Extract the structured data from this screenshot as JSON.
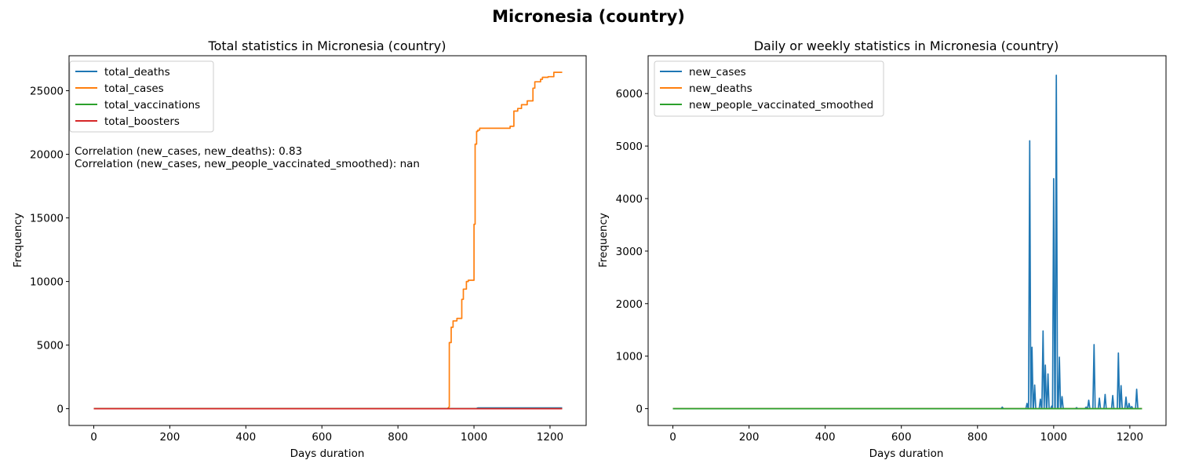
{
  "figure": {
    "title": "Micronesia (country)"
  },
  "chart_data": [
    {
      "type": "line",
      "title": "Total statistics in Micronesia (country)",
      "xlabel": "Days duration",
      "ylabel": "Frequency",
      "xlim": [
        -65,
        1295
      ],
      "ylim": [
        -1320,
        27750
      ],
      "xticks": [
        0,
        200,
        400,
        600,
        800,
        1000,
        1200
      ],
      "yticks": [
        0,
        5000,
        10000,
        15000,
        20000,
        25000
      ],
      "legend_position": "upper-left",
      "annotations": [
        "Correlation (new_cases, new_deaths): 0.83",
        "Correlation (new_cases, new_people_vaccinated_smoothed): nan"
      ],
      "series": [
        {
          "name": "total_deaths",
          "color": "#1f77b4",
          "x": [
            0,
            1005,
            1010,
            1232
          ],
          "y": [
            0,
            0,
            60,
            60
          ]
        },
        {
          "name": "total_cases",
          "color": "#ff7f0e",
          "x": [
            0,
            930,
            935,
            935,
            940,
            940,
            945,
            945,
            955,
            955,
            968,
            968,
            972,
            972,
            980,
            980,
            985,
            985,
            1000,
            1000,
            1003,
            1003,
            1007,
            1007,
            1010,
            1010,
            1015,
            1015,
            1095,
            1095,
            1105,
            1105,
            1115,
            1115,
            1125,
            1125,
            1140,
            1140,
            1155,
            1155,
            1160,
            1160,
            1175,
            1175,
            1180,
            1180,
            1195,
            1195,
            1210,
            1210,
            1232
          ],
          "y": [
            0,
            0,
            150,
            5200,
            5200,
            6400,
            6400,
            6900,
            6900,
            7100,
            7100,
            8600,
            8600,
            9400,
            9400,
            10000,
            10000,
            10100,
            10100,
            14500,
            14500,
            20800,
            20800,
            21800,
            21800,
            21900,
            21900,
            22050,
            22050,
            22200,
            22200,
            23400,
            23400,
            23600,
            23600,
            23900,
            23900,
            24200,
            24200,
            25200,
            25200,
            25700,
            25700,
            25900,
            25900,
            26050,
            26050,
            26100,
            26100,
            26450,
            26450
          ]
        },
        {
          "name": "total_vaccinations",
          "color": "#2ca02c",
          "x": [
            0,
            1232
          ],
          "y": [
            0,
            0
          ]
        },
        {
          "name": "total_boosters",
          "color": "#d62728",
          "x": [
            0,
            1232
          ],
          "y": [
            0,
            0
          ]
        }
      ]
    },
    {
      "type": "line",
      "title": "Daily or weekly statistics in Micronesia (country)",
      "xlabel": "Days duration",
      "ylabel": "Frequency",
      "xlim": [
        -65,
        1295
      ],
      "ylim": [
        -320,
        6720
      ],
      "xticks": [
        0,
        200,
        400,
        600,
        800,
        1000,
        1200
      ],
      "yticks": [
        0,
        1000,
        2000,
        3000,
        4000,
        5000,
        6000
      ],
      "legend_position": "upper-left",
      "series": [
        {
          "name": "new_cases",
          "color": "#1f77b4",
          "spikes": [
            [
              865,
              30
            ],
            [
              930,
              100
            ],
            [
              937,
              5100
            ],
            [
              943,
              1170
            ],
            [
              950,
              450
            ],
            [
              965,
              180
            ],
            [
              972,
              1480
            ],
            [
              978,
              830
            ],
            [
              985,
              660
            ],
            [
              995,
              50
            ],
            [
              1000,
              4380
            ],
            [
              1007,
              6350
            ],
            [
              1015,
              980
            ],
            [
              1022,
              230
            ],
            [
              1060,
              20
            ],
            [
              1085,
              30
            ],
            [
              1092,
              160
            ],
            [
              1106,
              1220
            ],
            [
              1120,
              200
            ],
            [
              1135,
              270
            ],
            [
              1155,
              250
            ],
            [
              1170,
              1060
            ],
            [
              1177,
              440
            ],
            [
              1190,
              220
            ],
            [
              1198,
              100
            ],
            [
              1205,
              40
            ],
            [
              1218,
              370
            ]
          ]
        },
        {
          "name": "new_deaths",
          "color": "#ff7f0e",
          "x": [
            0,
            1232
          ],
          "y": [
            0,
            0
          ]
        },
        {
          "name": "new_people_vaccinated_smoothed",
          "color": "#2ca02c",
          "x": [
            0,
            1232
          ],
          "y": [
            0,
            0
          ]
        }
      ]
    }
  ]
}
